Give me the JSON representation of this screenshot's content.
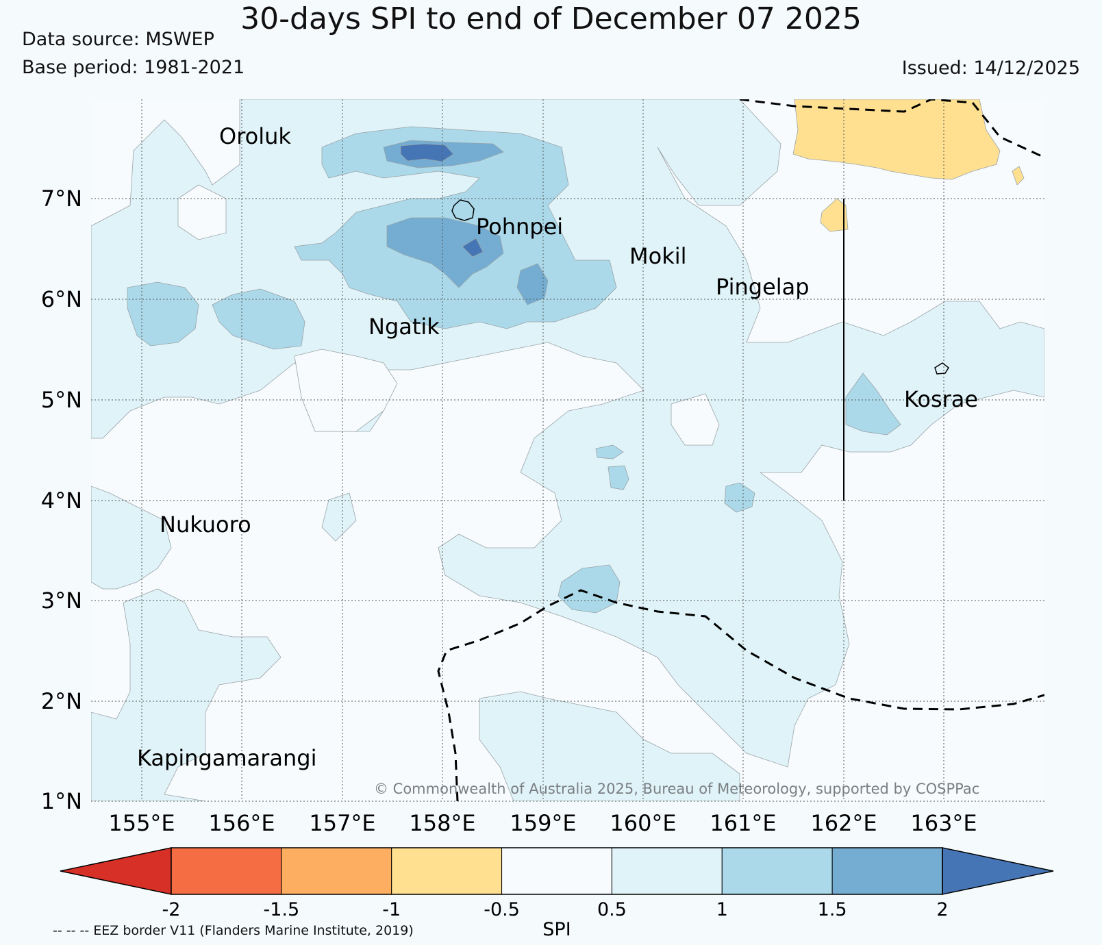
{
  "header": {
    "title": "30-days SPI to end of December 07 2025",
    "data_source": "Data source: MSWEP",
    "base_period": "Base period: 1981-2021",
    "issued": "Issued: 14/12/2025"
  },
  "map": {
    "lat_labels": [
      "7°N",
      "6°N",
      "5°N",
      "4°N",
      "3°N",
      "2°N",
      "1°N"
    ],
    "lon_labels": [
      "155°E",
      "156°E",
      "157°E",
      "158°E",
      "159°E",
      "160°E",
      "161°E",
      "162°E",
      "163°E"
    ],
    "places": [
      {
        "name": "Oroluk"
      },
      {
        "name": "Pohnpei"
      },
      {
        "name": "Mokil"
      },
      {
        "name": "Pingelap"
      },
      {
        "name": "Ngatik"
      },
      {
        "name": "Kosrae"
      },
      {
        "name": "Nukuoro"
      },
      {
        "name": "Kapingamarangi"
      }
    ],
    "copyright": "© Commonwealth of Australia 2025, Bureau of Meteorology, supported by COSPPac"
  },
  "colorbar": {
    "label": "SPI",
    "ticks": [
      "-2",
      "-1.5",
      "-1",
      "-0.5",
      "0.5",
      "1",
      "1.5",
      "2"
    ],
    "colors": [
      "#d73027",
      "#f46d43",
      "#fdae61",
      "#fee090",
      "#f7fbfd",
      "#e0f3f8",
      "#abd9e9",
      "#74add1",
      "#4575b4"
    ]
  },
  "legend_note": "-- -- -- EEZ border V11 (Flanders Marine Institute, 2019)"
}
